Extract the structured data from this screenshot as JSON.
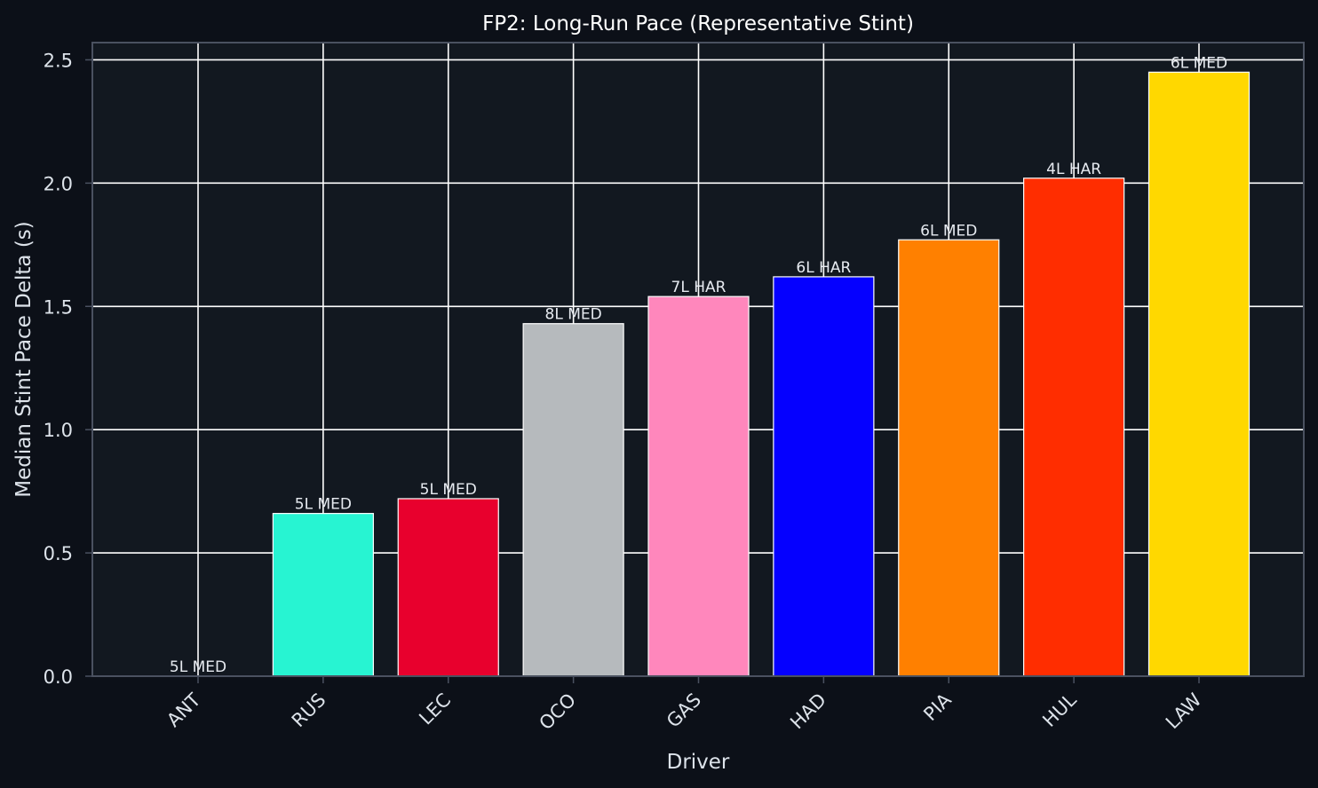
{
  "chart_data": {
    "type": "bar",
    "title": "FP2: Long-Run Pace (Representative Stint)",
    "xlabel": "Driver",
    "ylabel": "Median Stint Pace Delta (s)",
    "ylim": [
      0,
      2.57
    ],
    "yticks": [
      "0.0",
      "0.5",
      "1.0",
      "1.5",
      "2.0",
      "2.5"
    ],
    "grid": true,
    "categories": [
      "ANT",
      "RUS",
      "LEC",
      "OCO",
      "GAS",
      "HAD",
      "PIA",
      "HUL",
      "LAW"
    ],
    "values": [
      0.0,
      0.66,
      0.72,
      1.43,
      1.54,
      1.62,
      1.77,
      2.02,
      2.45
    ],
    "bar_labels": [
      "5L MED",
      "5L MED",
      "5L MED",
      "8L MED",
      "7L HAR",
      "6L HAR",
      "6L MED",
      "4L HAR",
      "6L MED"
    ],
    "colors": [
      "#27f4d2",
      "#27f4d2",
      "#e8002d",
      "#b6babd",
      "#ff87bc",
      "#0500ff",
      "#ff8000",
      "#ff2d00",
      "#ffd800"
    ]
  },
  "theme": {
    "background": "#0c1018",
    "plot_background": "#121820",
    "grid": "#ffffff",
    "axis_border": "#4a5160"
  }
}
